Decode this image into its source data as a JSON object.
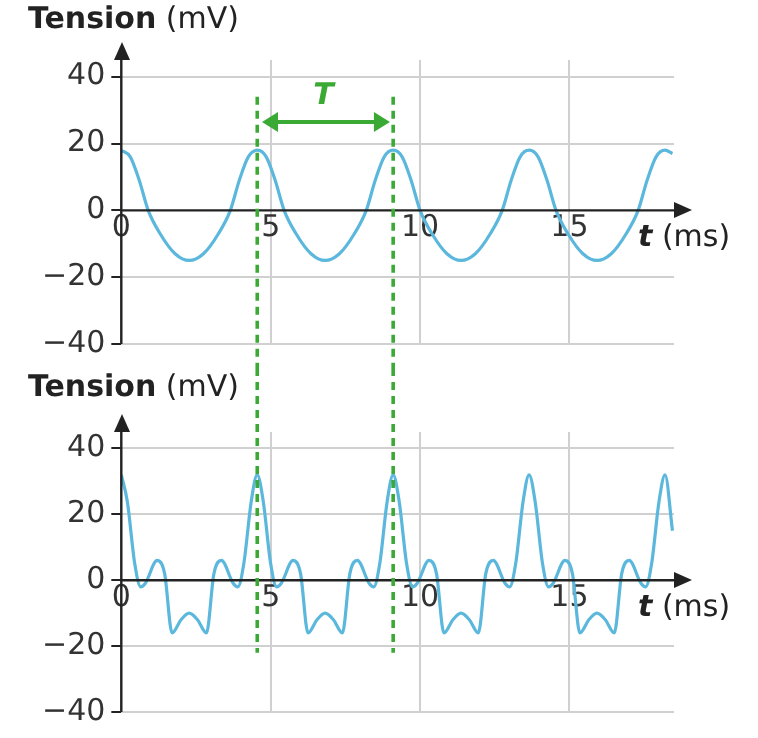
{
  "chart_data": [
    {
      "type": "line",
      "ylabel": "Tension (mV)",
      "xlabel": "t (ms)",
      "xlim": [
        0,
        18.5
      ],
      "ylim": [
        -40,
        45
      ],
      "xticks": [
        0,
        5,
        10,
        15
      ],
      "yticks": [
        -40,
        -20,
        0,
        20,
        40
      ],
      "grid": true,
      "legend": false,
      "marker": "none",
      "line_style": "solid",
      "x": [
        0,
        0.3,
        0.6,
        0.9,
        1.3,
        1.8,
        2.27,
        2.75,
        3.25,
        3.65,
        3.95,
        4.25,
        4.55,
        4.85,
        5.15,
        5.45,
        5.85,
        6.35,
        6.82,
        7.3,
        7.8,
        8.2,
        8.5,
        8.8,
        9.1,
        9.4,
        9.7,
        10,
        10.4,
        10.9,
        11.37,
        11.85,
        12.35,
        12.75,
        13.05,
        13.35,
        13.65,
        13.95,
        14.25,
        14.55,
        14.95,
        15.45,
        15.92,
        16.4,
        16.9,
        17.3,
        17.6,
        17.9,
        18.2,
        18.45
      ],
      "series": [
        {
          "color": "#5bb8dc",
          "values": [
            18,
            16,
            9,
            0,
            -7,
            -13,
            -15,
            -13,
            -7,
            0,
            9,
            16,
            18,
            16,
            9,
            0,
            -7,
            -13,
            -15,
            -13,
            -7,
            0,
            9,
            16,
            18,
            16,
            9,
            0,
            -7,
            -13,
            -15,
            -13,
            -7,
            0,
            9,
            16,
            18,
            16,
            9,
            0,
            -7,
            -13,
            -15,
            -13,
            -7,
            0,
            9,
            16,
            18,
            17
          ]
        }
      ],
      "ref_lines": [
        {
          "axis": "x",
          "value": 4.55,
          "color": "#3aaa35",
          "line_style": "dashed"
        },
        {
          "axis": "x",
          "value": 9.1,
          "color": "#3aaa35",
          "line_style": "dashed"
        }
      ],
      "annotations": [
        "T"
      ]
    },
    {
      "type": "line",
      "ylabel": "Tension (mV)",
      "xlabel": "t (ms)",
      "xlim": [
        0,
        18.5
      ],
      "ylim": [
        -40,
        45
      ],
      "xticks": [
        0,
        5,
        10,
        15
      ],
      "yticks": [
        -40,
        -20,
        0,
        20,
        40
      ],
      "grid": true,
      "legend": false,
      "marker": "none",
      "line_style": "solid",
      "x": [
        0,
        0.2,
        0.45,
        0.65,
        0.8,
        1.2,
        1.45,
        1.7,
        2.0,
        2.27,
        2.55,
        2.85,
        3.1,
        3.35,
        3.75,
        3.9,
        4.1,
        4.35,
        4.55,
        4.75,
        5,
        5.2,
        5.35,
        5.75,
        6,
        6.25,
        6.55,
        6.82,
        7.1,
        7.4,
        7.65,
        7.9,
        8.3,
        8.45,
        8.65,
        8.9,
        9.1,
        9.3,
        9.55,
        9.75,
        9.9,
        10.3,
        10.55,
        10.8,
        11.1,
        11.37,
        11.65,
        11.95,
        12.2,
        12.45,
        12.85,
        13,
        13.2,
        13.45,
        13.65,
        13.85,
        14.1,
        14.3,
        14.45,
        14.85,
        15.1,
        15.35,
        15.65,
        15.92,
        16.2,
        16.5,
        16.75,
        17,
        17.4,
        17.55,
        17.75,
        18,
        18.2,
        18.45
      ],
      "series": [
        {
          "color": "#5bb8dc",
          "values": [
            32,
            24,
            5,
            -2,
            -1,
            6,
            2,
            -16,
            -12,
            -10,
            -12,
            -16,
            2,
            6,
            -1,
            -2,
            5,
            24,
            32,
            24,
            5,
            -2,
            -1,
            6,
            2,
            -16,
            -12,
            -10,
            -12,
            -16,
            2,
            6,
            -1,
            -2,
            5,
            24,
            32,
            24,
            5,
            -2,
            -1,
            6,
            2,
            -16,
            -12,
            -10,
            -12,
            -16,
            2,
            6,
            -1,
            -2,
            5,
            24,
            32,
            24,
            5,
            -2,
            -1,
            6,
            2,
            -16,
            -12,
            -10,
            -12,
            -16,
            2,
            6,
            -1,
            -2,
            5,
            24,
            32,
            15
          ]
        }
      ],
      "ref_lines": [
        {
          "axis": "x",
          "value": 4.55,
          "color": "#3aaa35",
          "line_style": "dashed"
        },
        {
          "axis": "x",
          "value": 9.1,
          "color": "#3aaa35",
          "line_style": "dashed"
        }
      ]
    }
  ]
}
